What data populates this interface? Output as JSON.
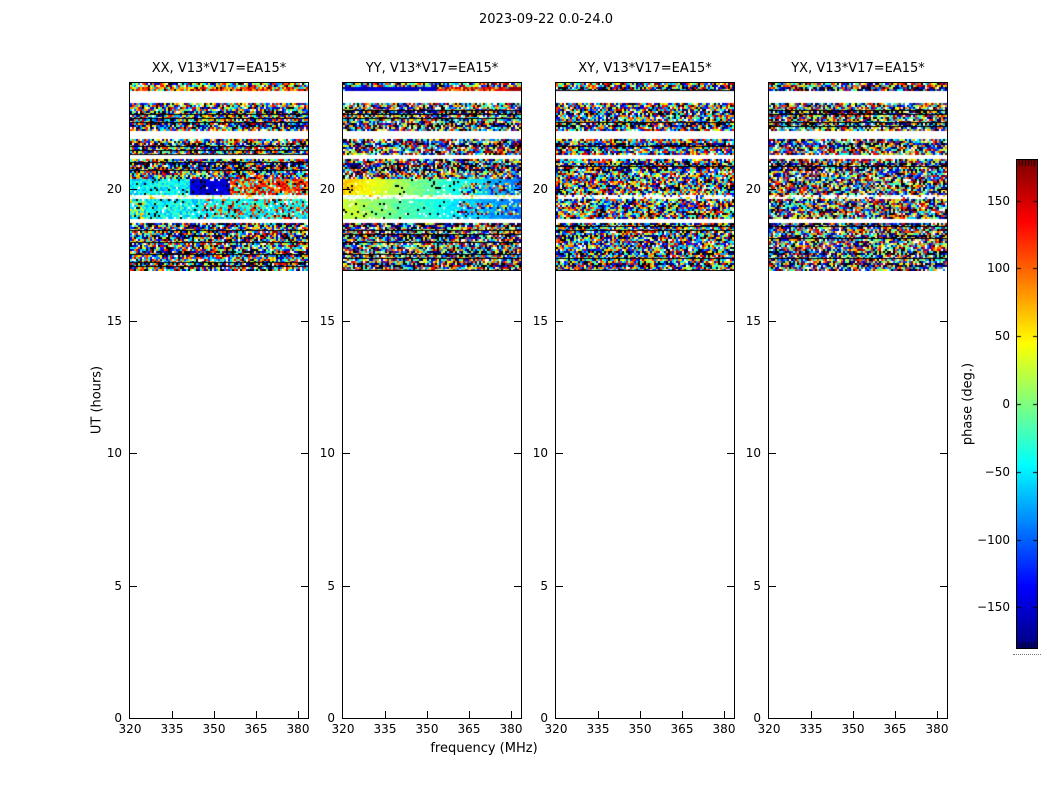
{
  "figure": {
    "background": "#ffffff",
    "frame_color": "#000000",
    "text_color": "#000000"
  },
  "chart_data": {
    "type": "heatmap",
    "title": "2023-09-22 0.0-24.0",
    "xlabel": "frequency (MHz)",
    "ylabel": "UT (hours)",
    "colorbar_label": "phase (deg.)",
    "colormap": "jet",
    "value_range_deg": [
      -180,
      180
    ],
    "x_range_mhz": [
      320,
      383.5
    ],
    "y_range_hours": [
      0,
      24
    ],
    "xticks": [
      320,
      335,
      350,
      365,
      380
    ],
    "yticks": [
      20,
      15,
      10,
      5,
      0
    ],
    "colorbar_tick_values": [
      150,
      100,
      50,
      0,
      -50,
      -100,
      -150
    ],
    "colorbar_tick_labels": [
      "150",
      "100",
      "50",
      "0",
      "−50",
      "−100",
      "−150"
    ],
    "data_time_range_hours": [
      16.9,
      24.0
    ],
    "panels": [
      {
        "id": "XX",
        "title": "XX, V13*V17=EA15*",
        "feature": "xx",
        "seed": 101
      },
      {
        "id": "YY",
        "title": "YY, V13*V17=EA15*",
        "feature": "yy",
        "seed": 202
      },
      {
        "id": "XY",
        "title": "XY, V13*V17=EA15*",
        "feature": "none",
        "seed": 303
      },
      {
        "id": "YX",
        "title": "YX, V13*V17=EA15*",
        "feature": "none",
        "seed": 404
      }
    ],
    "row_pattern": [
      "n",
      "top",
      "w",
      "w",
      "w",
      "n",
      "n",
      "d",
      "n",
      "n",
      "d",
      "n",
      "w",
      "w",
      "n",
      "d",
      "n",
      "n",
      "w",
      "n",
      "d",
      "d",
      "n",
      "n",
      "c",
      "c",
      "c",
      "c",
      "b",
      "c",
      "c",
      "c",
      "c",
      "c",
      "w",
      "d",
      "n",
      "n",
      "d",
      "n",
      "n",
      "n",
      "d",
      "n",
      "n",
      "d",
      "n"
    ],
    "description": "Visibility phase vs frequency (320–383 MHz) and UT time (0–24 h) for baseline V13*V17=EA15*, four polarization products. Random-looking phase noise in horizontal time bands from UT ≈16.9 to 24.0; blank (no data) below UT ≈16.9. XX and YY panels show coherent phase structure (smooth blue/cyan and yellow-to-blue gradients with red patches and a bright near-white time row) around UT ≈19.2–20.4 and a warm coherent row near UT ≈23.7."
  }
}
